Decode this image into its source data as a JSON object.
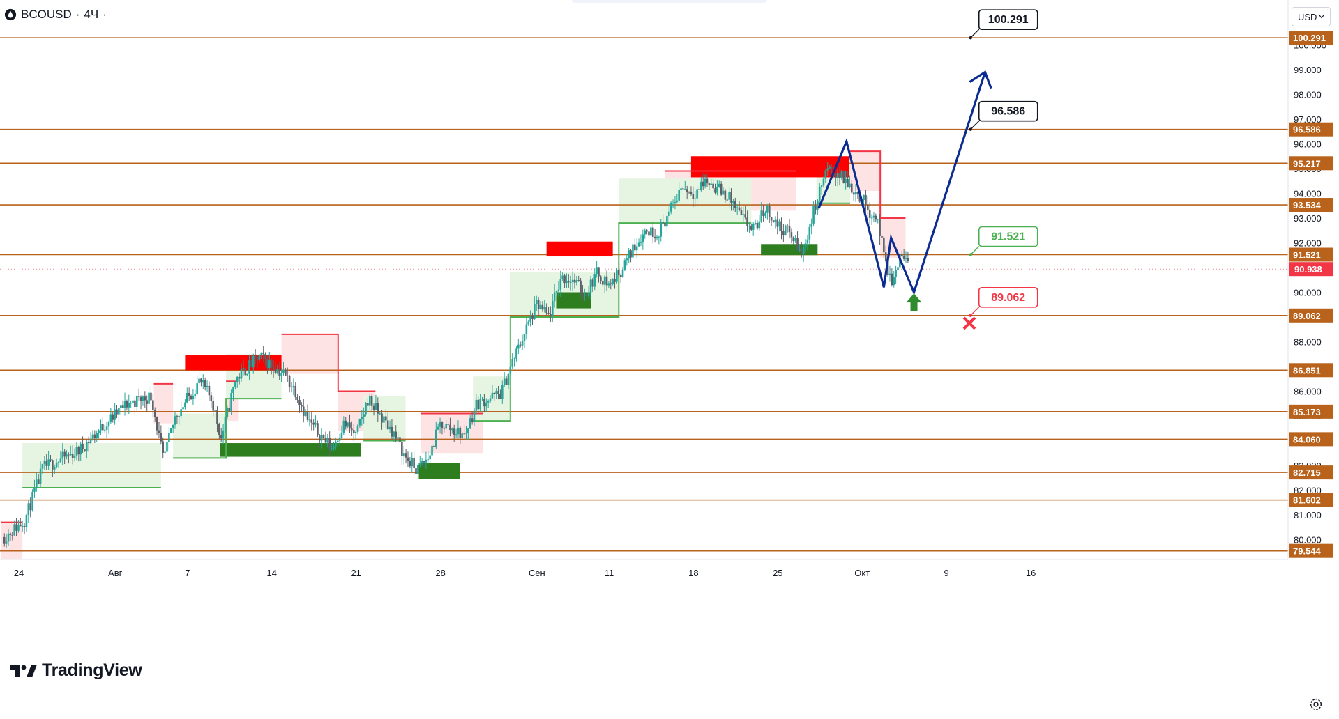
{
  "header": {
    "symbol": "BCOUSD",
    "separator": "·",
    "timeframe": "4Ч",
    "dot": "·"
  },
  "currency": {
    "label": "USD"
  },
  "logo": {
    "text": "TradingView"
  },
  "colors": {
    "level_line": "#b8621b",
    "level_label_bg": "#b8621b",
    "up_candle": "#26a69a",
    "down_candle": "#5d6068",
    "resistance_zone": "#ff0000",
    "support_zone": "#2e7d1e",
    "trail_red": "#f23645",
    "trail_green": "#4caf50",
    "fill_red": "#fde3e3",
    "fill_green": "#e6f4e2",
    "projection": "#0d2c91",
    "target_up": "#131722",
    "target_mid": "#4caf50",
    "target_stop": "#f23645",
    "current_price_bg": "#f23645",
    "arrow_up": "#2e8b2e",
    "cross": "#f23645"
  },
  "chart_data": {
    "type": "candlestick",
    "ylim": [
      79.2,
      101.5
    ],
    "y_ticks": [
      "80.000",
      "81.000",
      "82.000",
      "83.000",
      "84.000",
      "85.000",
      "86.000",
      "87.000",
      "88.000",
      "89.000",
      "90.000",
      "91.000",
      "92.000",
      "93.000",
      "94.000",
      "95.000",
      "96.000",
      "97.000",
      "98.000",
      "99.000",
      "100.000"
    ],
    "x_ticks": [
      {
        "label": "24",
        "day": 0
      },
      {
        "label": "Авг",
        "day": 8
      },
      {
        "label": "7",
        "day": 14
      },
      {
        "label": "14",
        "day": 21
      },
      {
        "label": "21",
        "day": 28
      },
      {
        "label": "28",
        "day": 35
      },
      {
        "label": "Сен",
        "day": 43
      },
      {
        "label": "11",
        "day": 49
      },
      {
        "label": "18",
        "day": 56
      },
      {
        "label": "25",
        "day": 63
      },
      {
        "label": "Окт",
        "day": 70
      },
      {
        "label": "9",
        "day": 77
      },
      {
        "label": "16",
        "day": 84
      }
    ],
    "levels": [
      {
        "value": 100.291,
        "label": "100.291"
      },
      {
        "value": 96.586,
        "label": "96.586"
      },
      {
        "value": 95.217,
        "label": "95.217"
      },
      {
        "value": 93.534,
        "label": "93.534"
      },
      {
        "value": 91.521,
        "label": "91.521"
      },
      {
        "value": 89.062,
        "label": "89.062"
      },
      {
        "value": 86.851,
        "label": "86.851"
      },
      {
        "value": 85.173,
        "label": "85.173"
      },
      {
        "value": 84.06,
        "label": "84.060"
      },
      {
        "value": 82.715,
        "label": "82.715"
      },
      {
        "value": 81.602,
        "label": "81.602"
      },
      {
        "value": 79.544,
        "label": "79.544"
      }
    ],
    "current_price": {
      "value": 90.938,
      "label": "90.938"
    },
    "anchors": [
      {
        "day": -1.2,
        "price": 80.1
      },
      {
        "day": 0.5,
        "price": 80.8
      },
      {
        "day": 2,
        "price": 82.9
      },
      {
        "day": 5,
        "price": 83.6
      },
      {
        "day": 7,
        "price": 84.6
      },
      {
        "day": 9,
        "price": 85.5
      },
      {
        "day": 11,
        "price": 85.8
      },
      {
        "day": 12,
        "price": 83.2
      },
      {
        "day": 13,
        "price": 85.0
      },
      {
        "day": 15,
        "price": 86.4
      },
      {
        "day": 16,
        "price": 85.7
      },
      {
        "day": 16.8,
        "price": 84.1
      },
      {
        "day": 18,
        "price": 86.5
      },
      {
        "day": 20,
        "price": 87.4
      },
      {
        "day": 22,
        "price": 86.7
      },
      {
        "day": 23,
        "price": 86.0
      },
      {
        "day": 24,
        "price": 84.8
      },
      {
        "day": 26,
        "price": 83.7
      },
      {
        "day": 27,
        "price": 84.7
      },
      {
        "day": 28,
        "price": 84.2
      },
      {
        "day": 29,
        "price": 85.7
      },
      {
        "day": 30,
        "price": 85.0
      },
      {
        "day": 31,
        "price": 84.4
      },
      {
        "day": 32,
        "price": 83.4
      },
      {
        "day": 33,
        "price": 82.8
      },
      {
        "day": 34,
        "price": 83.3
      },
      {
        "day": 35,
        "price": 84.7
      },
      {
        "day": 37,
        "price": 84.2
      },
      {
        "day": 38,
        "price": 85.5
      },
      {
        "day": 40,
        "price": 85.9
      },
      {
        "day": 41,
        "price": 87.2
      },
      {
        "day": 42,
        "price": 88.4
      },
      {
        "day": 43,
        "price": 89.5
      },
      {
        "day": 44,
        "price": 89.0
      },
      {
        "day": 45,
        "price": 90.6
      },
      {
        "day": 46,
        "price": 90.5
      },
      {
        "day": 47,
        "price": 89.9
      },
      {
        "day": 48,
        "price": 90.8
      },
      {
        "day": 49,
        "price": 90.3
      },
      {
        "day": 50,
        "price": 90.9
      },
      {
        "day": 51,
        "price": 91.8
      },
      {
        "day": 52,
        "price": 92.5
      },
      {
        "day": 53,
        "price": 92.4
      },
      {
        "day": 54,
        "price": 93.2
      },
      {
        "day": 55,
        "price": 94.3
      },
      {
        "day": 56,
        "price": 94.0
      },
      {
        "day": 57,
        "price": 94.5
      },
      {
        "day": 58,
        "price": 94.2
      },
      {
        "day": 59,
        "price": 93.8
      },
      {
        "day": 60,
        "price": 93.0
      },
      {
        "day": 61,
        "price": 92.5
      },
      {
        "day": 62,
        "price": 93.4
      },
      {
        "day": 63,
        "price": 92.7
      },
      {
        "day": 64,
        "price": 92.4
      },
      {
        "day": 65,
        "price": 91.5
      },
      {
        "day": 66,
        "price": 93.3
      },
      {
        "day": 67,
        "price": 94.9
      },
      {
        "day": 68,
        "price": 94.8
      },
      {
        "day": 69,
        "price": 94.3
      },
      {
        "day": 70,
        "price": 93.8
      },
      {
        "day": 70.6,
        "price": 93.3
      },
      {
        "day": 71.3,
        "price": 92.9
      },
      {
        "day": 72,
        "price": 90.9
      },
      {
        "day": 72.6,
        "price": 90.4
      },
      {
        "day": 73.2,
        "price": 91.6
      },
      {
        "day": 73.8,
        "price": 91.1
      }
    ],
    "zones_resistance": [
      {
        "d0": 13.8,
        "d1": 21.8,
        "top": 87.45,
        "bottom": 86.85
      },
      {
        "d0": 43.8,
        "d1": 49.3,
        "top": 92.05,
        "bottom": 91.45
      },
      {
        "d0": 55.8,
        "d1": 68.9,
        "top": 95.5,
        "bottom": 94.65
      }
    ],
    "zones_support": [
      {
        "d0": 16.7,
        "d1": 28.4,
        "top": 83.9,
        "bottom": 83.35
      },
      {
        "d0": 33.2,
        "d1": 36.6,
        "top": 83.1,
        "bottom": 82.45
      },
      {
        "d0": 44.6,
        "d1": 47.5,
        "top": 90.0,
        "bottom": 89.35
      },
      {
        "d0": 61.6,
        "d1": 66.3,
        "top": 91.95,
        "bottom": 91.5
      }
    ],
    "trail_red": [
      {
        "d0": -1.5,
        "d1": 0.3,
        "v": 80.7
      },
      {
        "d0": 11.2,
        "d1": 12.8,
        "v": 86.3
      },
      {
        "d0": 17.2,
        "d1": 18.2,
        "v": 86.4
      },
      {
        "d0": 21.8,
        "d1": 26.5,
        "v": 88.3
      },
      {
        "d0": 26.5,
        "d1": 29.6,
        "v": 86.0
      },
      {
        "d0": 33.4,
        "d1": 38.5,
        "v": 85.1
      },
      {
        "d0": 53.6,
        "d1": 64.5,
        "v": 94.9
      },
      {
        "d0": 69.0,
        "d1": 71.5,
        "v": 95.7
      },
      {
        "d0": 71.5,
        "d1": 73.6,
        "v": 93.0
      }
    ],
    "trail_green": [
      {
        "d0": 0.3,
        "d1": 11.8,
        "v": 82.1
      },
      {
        "d0": 12.8,
        "d1": 17.2,
        "v": 83.3
      },
      {
        "d0": 17.2,
        "d1": 21.8,
        "v": 85.7
      },
      {
        "d0": 28.6,
        "d1": 32.1,
        "v": 84.0
      },
      {
        "d0": 37.7,
        "d1": 40.8,
        "v": 84.8
      },
      {
        "d0": 40.8,
        "d1": 49.8,
        "v": 89.0
      },
      {
        "d0": 49.8,
        "d1": 60.8,
        "v": 92.8
      },
      {
        "d0": 66.2,
        "d1": 69.0,
        "v": 93.6
      }
    ],
    "projection": [
      {
        "day": 66.4,
        "price": 93.4
      },
      {
        "day": 68.7,
        "price": 96.1
      },
      {
        "day": 71.8,
        "price": 90.2
      },
      {
        "day": 72.4,
        "price": 92.2
      },
      {
        "day": 74.3,
        "price": 90.0
      },
      {
        "day": 80.2,
        "price": 98.9
      }
    ],
    "targets": [
      {
        "value": 100.291,
        "label": "100.291",
        "kind": "up",
        "day": 79.0
      },
      {
        "value": 96.586,
        "label": "96.586",
        "kind": "up",
        "day": 79.0
      },
      {
        "value": 91.521,
        "label": "91.521",
        "kind": "mid",
        "day": 79.0
      },
      {
        "value": 89.062,
        "label": "89.062",
        "kind": "stop",
        "day": 79.0
      }
    ]
  }
}
